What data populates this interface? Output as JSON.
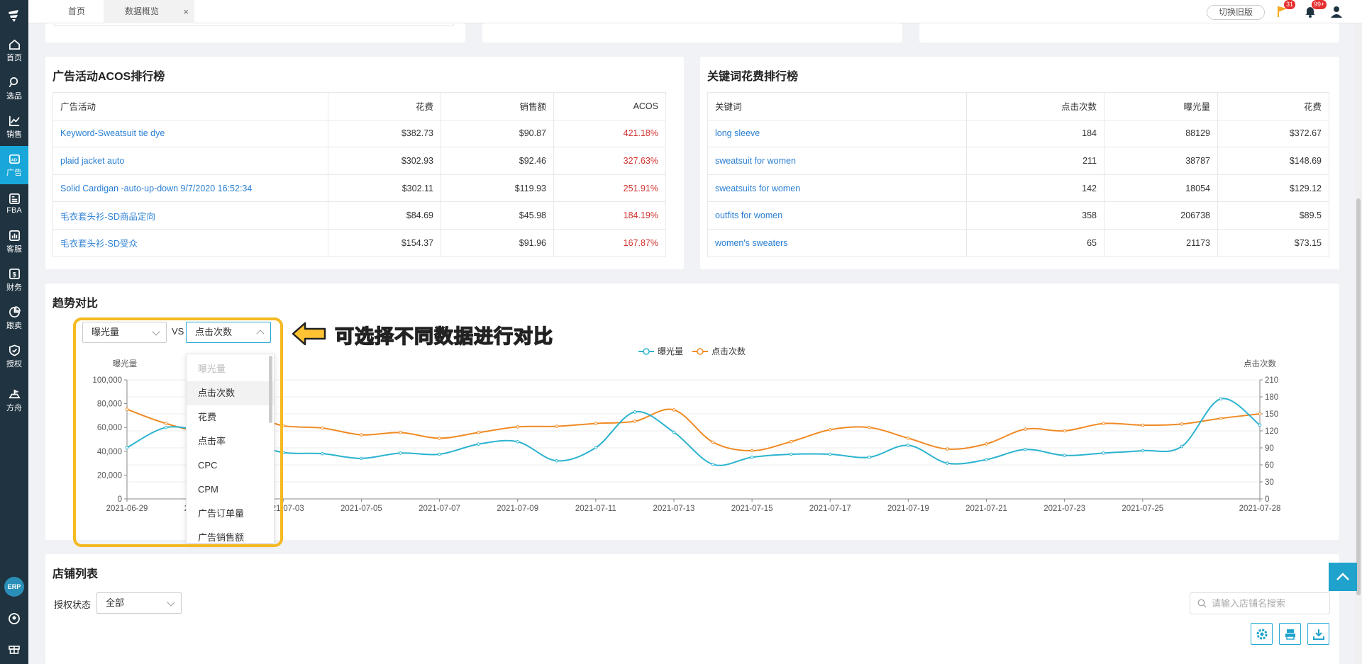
{
  "sidebar": {
    "items": [
      {
        "label": "首页",
        "icon": "home-icon"
      },
      {
        "label": "选品",
        "icon": "search-icon"
      },
      {
        "label": "销售",
        "icon": "line-chart-icon"
      },
      {
        "label": "广告",
        "icon": "ad-icon"
      },
      {
        "label": "FBA",
        "icon": "fba-icon"
      },
      {
        "label": "客服",
        "icon": "bar-chart-icon"
      },
      {
        "label": "财务",
        "icon": "dollar-icon"
      },
      {
        "label": "跟卖",
        "icon": "pie-chart-icon"
      },
      {
        "label": "授权",
        "icon": "shield-icon"
      },
      {
        "label": "方舟",
        "icon": "ark-icon"
      }
    ],
    "erp": "ERP",
    "active_index": 3
  },
  "topbar": {
    "tabs": [
      {
        "label": "首页"
      },
      {
        "label": "数据概览"
      }
    ],
    "close_glyph": "×",
    "switch_label": "切换旧版",
    "flag_badge": "31",
    "bell_badge": "99+"
  },
  "acos": {
    "title": "广告活动ACOS排行榜",
    "headers": [
      "广告活动",
      "花费",
      "销售额",
      "ACOS"
    ],
    "rows": [
      [
        "Keyword-Sweatsuit tie dye",
        "$382.73",
        "$90.87",
        "421.18%"
      ],
      [
        "plaid jacket auto",
        "$302.93",
        "$92.46",
        "327.63%"
      ],
      [
        "Solid Cardigan -auto-up-down 9/7/2020 16:52:34",
        "$302.11",
        "$119.93",
        "251.91%"
      ],
      [
        "毛衣套头衫-SD商品定向",
        "$84.69",
        "$45.98",
        "184.19%"
      ],
      [
        "毛衣套头衫-SD受众",
        "$154.37",
        "$91.96",
        "167.87%"
      ]
    ]
  },
  "keywords": {
    "title": "关键词花费排行榜",
    "headers": [
      "关键词",
      "点击次数",
      "曝光量",
      "花费"
    ],
    "rows": [
      [
        "long sleeve",
        "184",
        "88129",
        "$372.67"
      ],
      [
        "sweatsuit for women",
        "211",
        "38787",
        "$148.69"
      ],
      [
        "sweatsuits for women",
        "142",
        "18054",
        "$129.12"
      ],
      [
        "outfits for women",
        "358",
        "206738",
        "$89.5"
      ],
      [
        "women's sweaters",
        "65",
        "21173",
        "$73.15"
      ]
    ]
  },
  "trend": {
    "title": "趋势对比",
    "select_left": "曝光量",
    "vs": "VS",
    "select_right": "点击次数",
    "callout": "可选择不同数据进行对比",
    "dropdown_options": [
      "曝光量",
      "点击次数",
      "花费",
      "点击率",
      "CPC",
      "CPM",
      "广告订单量",
      "广告销售额"
    ],
    "dropdown_disabled_index": 0,
    "dropdown_selected_index": 1,
    "colors": {
      "impressions": "#2bb3cf",
      "clicks": "#f08a24",
      "highlight": "#f5b921"
    }
  },
  "chart_data": {
    "type": "line",
    "legend": [
      "曝光量",
      "点击次数"
    ],
    "legend_position": "top-center",
    "ylabel_left": "曝光量",
    "ylabel_right": "点击次数",
    "ylim_left": [
      0,
      100000
    ],
    "yticks_left": [
      "100,000",
      "80,000",
      "60,000",
      "40,000",
      "20,000",
      "0"
    ],
    "ylim_right": [
      0,
      210
    ],
    "yticks_right": [
      "210",
      "180",
      "150",
      "120",
      "90",
      "60",
      "30",
      "0"
    ],
    "xtick_labels": [
      "2021-06-29",
      "2021-07-01",
      "2021-07-03",
      "2021-07-05",
      "2021-07-07",
      "2021-07-09",
      "2021-07-11",
      "2021-07-13",
      "2021-07-15",
      "2021-07-17",
      "2021-07-19",
      "2021-07-21",
      "2021-07-23",
      "2021-07-25",
      "2021-07-28"
    ],
    "x": [
      "2021-06-29",
      "2021-06-30",
      "2021-07-01",
      "2021-07-02",
      "2021-07-03",
      "2021-07-04",
      "2021-07-05",
      "2021-07-06",
      "2021-07-07",
      "2021-07-08",
      "2021-07-09",
      "2021-07-10",
      "2021-07-11",
      "2021-07-12",
      "2021-07-13",
      "2021-07-14",
      "2021-07-15",
      "2021-07-16",
      "2021-07-17",
      "2021-07-18",
      "2021-07-19",
      "2021-07-20",
      "2021-07-21",
      "2021-07-22",
      "2021-07-23",
      "2021-07-24",
      "2021-07-25",
      "2021-07-26",
      "2021-07-27",
      "2021-07-28"
    ],
    "series": [
      {
        "name": "曝光量",
        "axis": "left",
        "values": [
          43000,
          60000,
          56000,
          48000,
          39000,
          38000,
          34000,
          38500,
          37500,
          46000,
          48000,
          32000,
          43000,
          73000,
          56000,
          29000,
          35000,
          37500,
          37500,
          35000,
          45000,
          30000,
          33000,
          41500,
          36500,
          38500,
          40500,
          44000,
          84000,
          62000
        ]
      },
      {
        "name": "点击次数",
        "axis": "right",
        "values": [
          158,
          133,
          120,
          147,
          129,
          125,
          113,
          117,
          107,
          117,
          127,
          128,
          133,
          137,
          157,
          100,
          85,
          101,
          122,
          126,
          107,
          88,
          97,
          123,
          120,
          133,
          130,
          132,
          142,
          150
        ]
      }
    ]
  },
  "store": {
    "title": "店铺列表",
    "auth_label": "授权状态",
    "auth_value": "全部",
    "search_placeholder": "请输入店铺名搜索"
  }
}
